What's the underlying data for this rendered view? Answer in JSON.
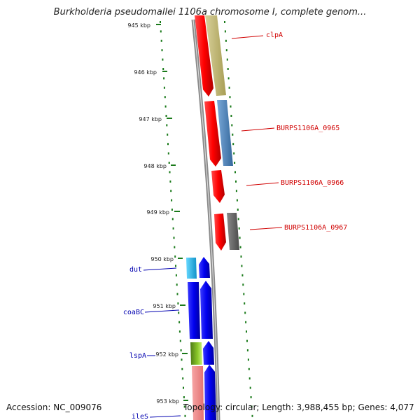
{
  "title": "Burkholderia pseudomallei 1106a chromosome I, complete genom...",
  "footer": {
    "accession": "Accession: NC_009076",
    "summary": "Topology: circular; Length: 3,988,455 bp; Genes: 4,077"
  },
  "ticks": [
    "945 kbp",
    "946 kbp",
    "947 kbp",
    "948 kbp",
    "949 kbp",
    "950 kbp",
    "951 kbp",
    "952 kbp",
    "953 kbp"
  ],
  "genes_right": [
    {
      "name": "clpA",
      "color": "#d00000"
    },
    {
      "name": "BURPS1106A_0965",
      "color": "#d00000"
    },
    {
      "name": "BURPS1106A_0966",
      "color": "#d00000"
    },
    {
      "name": "BURPS1106A_0967",
      "color": "#d00000"
    }
  ],
  "genes_left": [
    {
      "name": "dut",
      "color": "#0000b0"
    },
    {
      "name": "coaBC",
      "color": "#0000b0"
    },
    {
      "name": "lspA",
      "color": "#0000b0"
    },
    {
      "name": "ileS",
      "color": "#0000b0"
    }
  ],
  "colors": {
    "red_gene": "#ff0000",
    "olive_feature": "#bdb46a",
    "steelblue_feature": "#4a7fb5",
    "gray_feature": "#6b6b6b",
    "blue_gene": "#0000ee",
    "cyan_feature": "#22bbee",
    "green_feature": "#7ab51d",
    "pink_feature": "#f08a8a",
    "backbone": "#888888",
    "tick_green": "#1a7a1a"
  }
}
